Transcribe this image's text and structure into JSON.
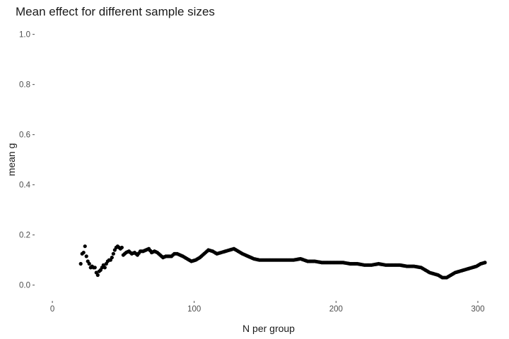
{
  "chart_data": {
    "type": "scatter",
    "title": "Mean effect for different sample sizes",
    "xlabel": "N per group",
    "ylabel": "mean g",
    "xlim": [
      -12,
      307
    ],
    "ylim": [
      -0.06,
      1.03
    ],
    "xticks": [
      0,
      100,
      200,
      300
    ],
    "yticks": [
      0.0,
      0.2,
      0.4,
      0.6,
      0.8,
      1.0
    ],
    "xtick_labels": [
      "0",
      "100",
      "200",
      "300"
    ],
    "ytick_labels": [
      "0.0",
      "0.2",
      "0.4",
      "0.6",
      "0.8",
      "1.0"
    ],
    "grid": false,
    "point_color": "#000000",
    "keypoints": [
      [
        20,
        0.085
      ],
      [
        21,
        0.125
      ],
      [
        22,
        0.13
      ],
      [
        23,
        0.155
      ],
      [
        24,
        0.115
      ],
      [
        25,
        0.095
      ],
      [
        26,
        0.085
      ],
      [
        27,
        0.07
      ],
      [
        28,
        0.075
      ],
      [
        29,
        0.07
      ],
      [
        30,
        0.07
      ],
      [
        31,
        0.05
      ],
      [
        32,
        0.04
      ],
      [
        33,
        0.055
      ],
      [
        34,
        0.06
      ],
      [
        35,
        0.07
      ],
      [
        36,
        0.08
      ],
      [
        37,
        0.07
      ],
      [
        38,
        0.085
      ],
      [
        39,
        0.095
      ],
      [
        40,
        0.1
      ],
      [
        41,
        0.1
      ],
      [
        42,
        0.11
      ],
      [
        43,
        0.125
      ],
      [
        44,
        0.14
      ],
      [
        45,
        0.15
      ],
      [
        46,
        0.155
      ],
      [
        47,
        0.15
      ],
      [
        48,
        0.145
      ],
      [
        49,
        0.15
      ],
      [
        50,
        0.12
      ],
      [
        52,
        0.13
      ],
      [
        54,
        0.135
      ],
      [
        56,
        0.125
      ],
      [
        58,
        0.13
      ],
      [
        60,
        0.12
      ],
      [
        62,
        0.135
      ],
      [
        64,
        0.135
      ],
      [
        66,
        0.14
      ],
      [
        68,
        0.145
      ],
      [
        70,
        0.13
      ],
      [
        72,
        0.135
      ],
      [
        74,
        0.13
      ],
      [
        76,
        0.12
      ],
      [
        78,
        0.11
      ],
      [
        80,
        0.115
      ],
      [
        84,
        0.115
      ],
      [
        86,
        0.125
      ],
      [
        88,
        0.125
      ],
      [
        90,
        0.12
      ],
      [
        92,
        0.115
      ],
      [
        95,
        0.105
      ],
      [
        98,
        0.095
      ],
      [
        101,
        0.1
      ],
      [
        104,
        0.11
      ],
      [
        107,
        0.125
      ],
      [
        110,
        0.14
      ],
      [
        113,
        0.135
      ],
      [
        116,
        0.125
      ],
      [
        119,
        0.13
      ],
      [
        122,
        0.135
      ],
      [
        125,
        0.14
      ],
      [
        128,
        0.145
      ],
      [
        131,
        0.135
      ],
      [
        134,
        0.125
      ],
      [
        138,
        0.115
      ],
      [
        142,
        0.105
      ],
      [
        146,
        0.1
      ],
      [
        150,
        0.1
      ],
      [
        155,
        0.1
      ],
      [
        160,
        0.1
      ],
      [
        165,
        0.1
      ],
      [
        170,
        0.1
      ],
      [
        175,
        0.105
      ],
      [
        180,
        0.095
      ],
      [
        185,
        0.095
      ],
      [
        190,
        0.09
      ],
      [
        195,
        0.09
      ],
      [
        200,
        0.09
      ],
      [
        205,
        0.09
      ],
      [
        210,
        0.085
      ],
      [
        215,
        0.085
      ],
      [
        220,
        0.08
      ],
      [
        225,
        0.08
      ],
      [
        230,
        0.085
      ],
      [
        235,
        0.08
      ],
      [
        240,
        0.08
      ],
      [
        245,
        0.08
      ],
      [
        250,
        0.075
      ],
      [
        255,
        0.075
      ],
      [
        260,
        0.07
      ],
      [
        263,
        0.06
      ],
      [
        266,
        0.05
      ],
      [
        269,
        0.045
      ],
      [
        272,
        0.04
      ],
      [
        275,
        0.03
      ],
      [
        278,
        0.03
      ],
      [
        281,
        0.04
      ],
      [
        284,
        0.05
      ],
      [
        287,
        0.055
      ],
      [
        290,
        0.06
      ],
      [
        293,
        0.065
      ],
      [
        296,
        0.07
      ],
      [
        299,
        0.075
      ],
      [
        302,
        0.085
      ],
      [
        305,
        0.09
      ]
    ]
  }
}
